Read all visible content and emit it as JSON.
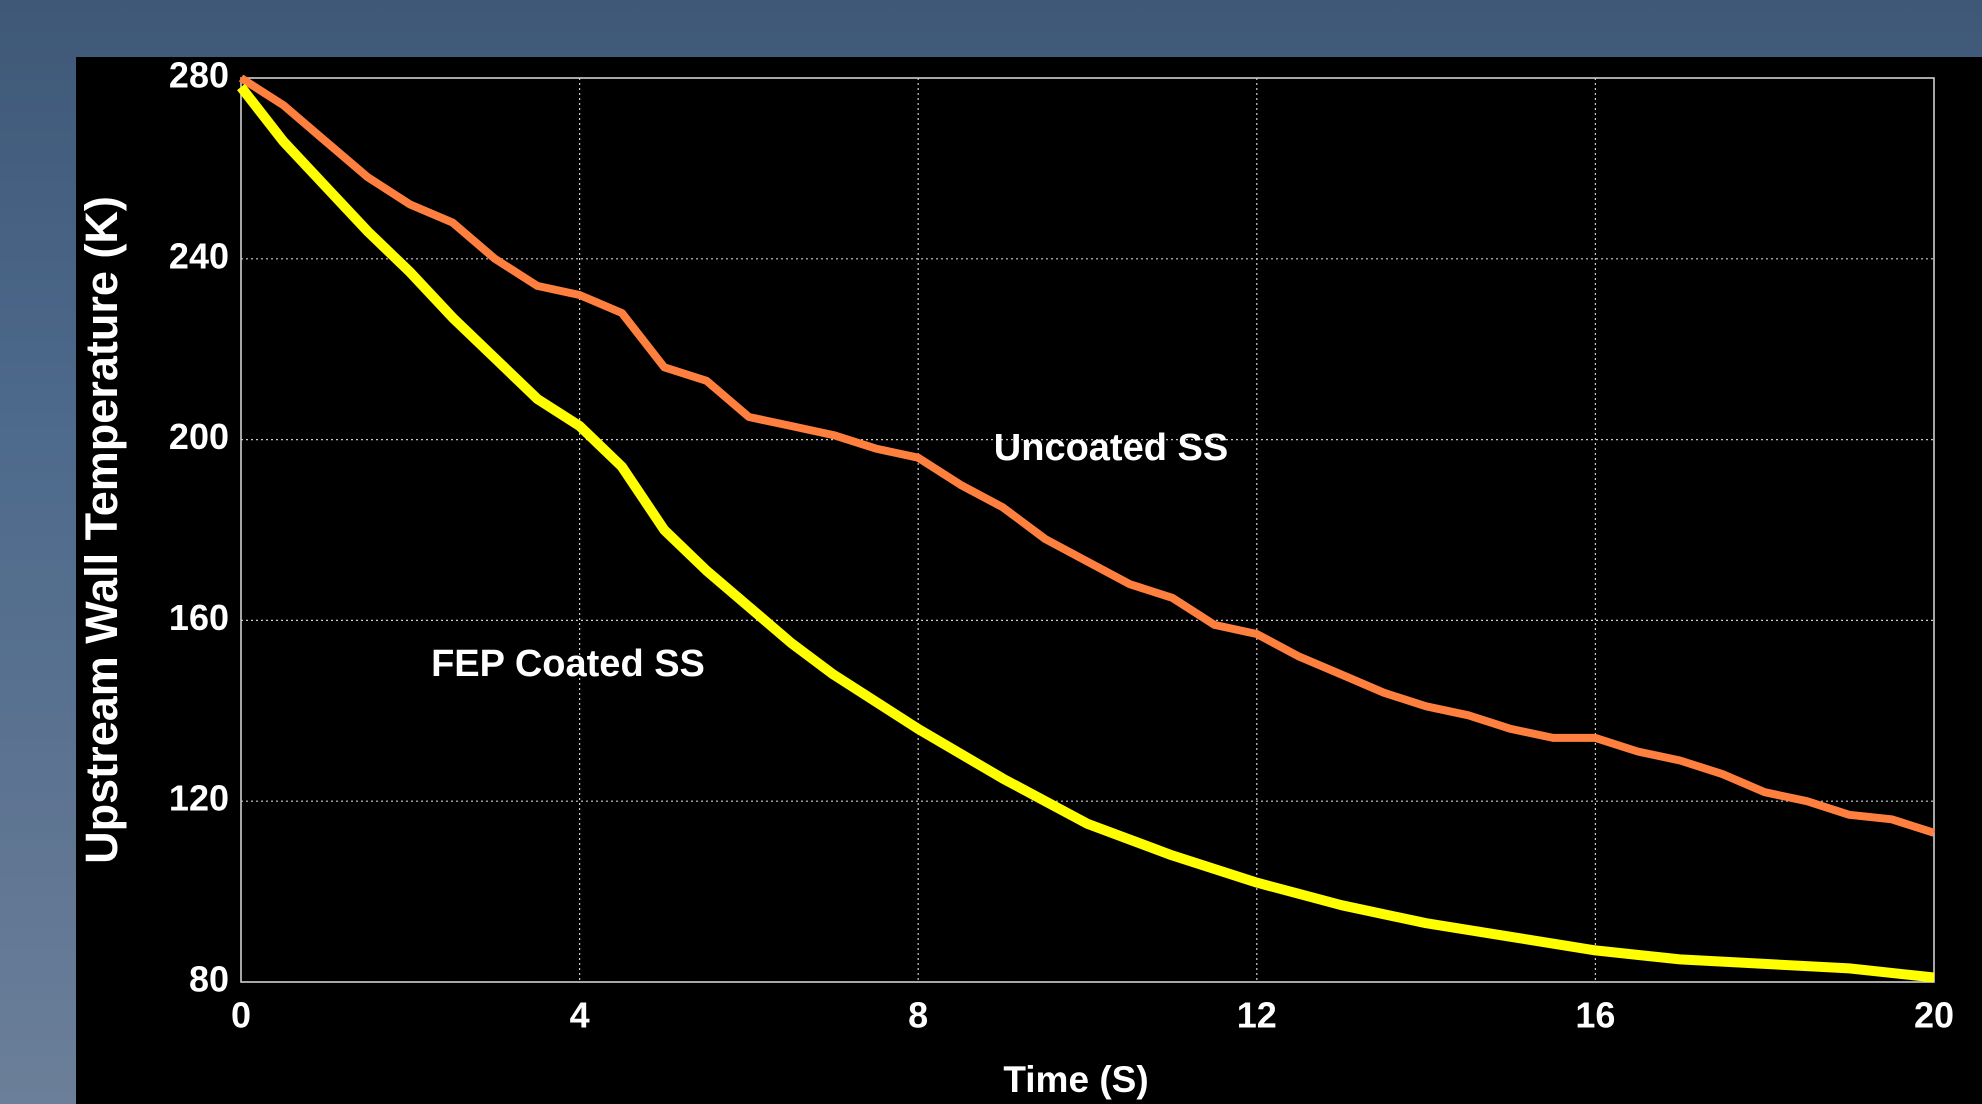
{
  "chart_data": {
    "type": "line",
    "xlabel": "Time (S)",
    "ylabel": "Upstream Wall Temperature (K)",
    "xlim": [
      0,
      20
    ],
    "xticks": [
      0,
      4,
      8,
      12,
      16,
      20
    ],
    "ylim": [
      80,
      280
    ],
    "yticks": [
      80,
      120,
      160,
      200,
      240,
      280
    ],
    "grid": true,
    "series": [
      {
        "name": "Uncoated SS",
        "color": "#ff7f3f",
        "x": [
          0,
          0.5,
          1,
          1.5,
          2,
          2.5,
          3,
          3.5,
          4,
          4.5,
          5,
          5.5,
          6,
          6.5,
          7,
          7.5,
          8,
          8.5,
          9,
          9.5,
          10,
          10.5,
          11,
          11.5,
          12,
          12.5,
          13,
          13.5,
          14,
          14.5,
          15,
          15.5,
          16,
          16.5,
          17,
          17.5,
          18,
          18.5,
          19,
          19.5,
          20
        ],
        "values": [
          280,
          274,
          266,
          258,
          252,
          248,
          240,
          234,
          232,
          228,
          216,
          213,
          205,
          203,
          201,
          198,
          196,
          190,
          185,
          178,
          173,
          168,
          165,
          159,
          157,
          152,
          148,
          144,
          141,
          139,
          136,
          134,
          134,
          131,
          129,
          126,
          122,
          120,
          117,
          116,
          113
        ]
      },
      {
        "name": "FEP Coated SS",
        "color": "#ffff00",
        "x": [
          0,
          0.5,
          1,
          1.5,
          2,
          2.5,
          3,
          3.5,
          4,
          4.5,
          5,
          5.5,
          6,
          6.5,
          7,
          8,
          9,
          10,
          11,
          12,
          13,
          14,
          15,
          16,
          17,
          18,
          19,
          20
        ],
        "values": [
          278,
          266,
          256,
          246,
          237,
          227,
          218,
          209,
          203,
          194,
          180,
          171,
          163,
          155,
          148,
          136,
          125,
          115,
          108,
          102,
          97,
          93,
          90,
          87,
          85,
          84,
          83,
          81
        ]
      }
    ]
  }
}
